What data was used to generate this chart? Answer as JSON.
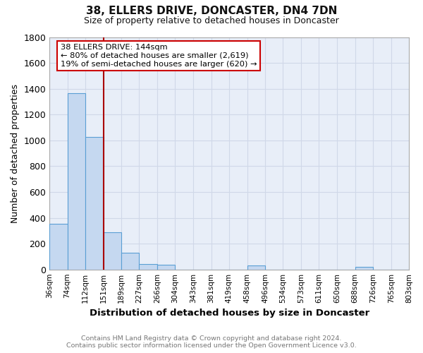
{
  "title": "38, ELLERS DRIVE, DONCASTER, DN4 7DN",
  "subtitle": "Size of property relative to detached houses in Doncaster",
  "xlabel": "Distribution of detached houses by size in Doncaster",
  "ylabel": "Number of detached properties",
  "bin_labels": [
    "36sqm",
    "74sqm",
    "112sqm",
    "151sqm",
    "189sqm",
    "227sqm",
    "266sqm",
    "304sqm",
    "343sqm",
    "381sqm",
    "419sqm",
    "458sqm",
    "496sqm",
    "534sqm",
    "573sqm",
    "611sqm",
    "650sqm",
    "688sqm",
    "726sqm",
    "765sqm",
    "803sqm"
  ],
  "bin_edges": [
    36,
    74,
    112,
    151,
    189,
    227,
    266,
    304,
    343,
    381,
    419,
    458,
    496,
    534,
    573,
    611,
    650,
    688,
    726,
    765,
    803
  ],
  "bar_heights": [
    355,
    1365,
    1025,
    290,
    130,
    40,
    35,
    0,
    0,
    0,
    0,
    30,
    0,
    0,
    0,
    0,
    0,
    20,
    0,
    0
  ],
  "bar_color": "#c5d8f0",
  "bar_edge_color": "#5a9fd4",
  "vline_x": 151,
  "vline_color": "#aa0000",
  "annotation_title": "38 ELLERS DRIVE: 144sqm",
  "annotation_line1": "← 80% of detached houses are smaller (2,619)",
  "annotation_line2": "19% of semi-detached houses are larger (620) →",
  "annotation_box_color": "#ffffff",
  "annotation_box_edge": "#cc0000",
  "ylim": [
    0,
    1800
  ],
  "yticks": [
    0,
    200,
    400,
    600,
    800,
    1000,
    1200,
    1400,
    1600,
    1800
  ],
  "grid_color": "#d0d8e8",
  "bg_color": "#e8eef8",
  "fig_bg_color": "#ffffff",
  "footer1": "Contains HM Land Registry data © Crown copyright and database right 2024.",
  "footer2": "Contains public sector information licensed under the Open Government Licence v3.0."
}
